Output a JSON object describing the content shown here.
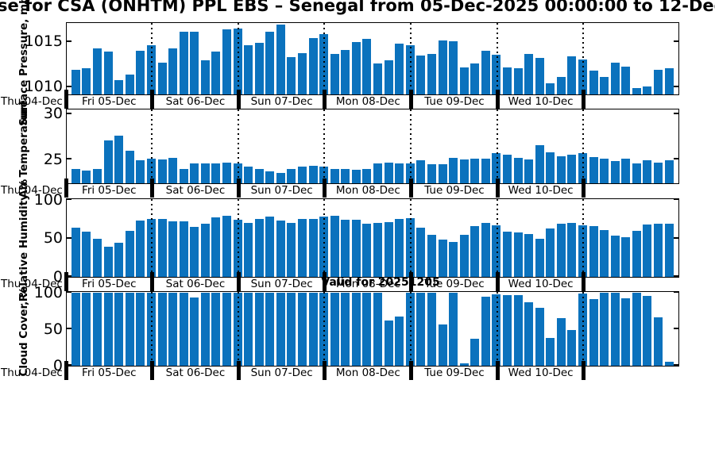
{
  "title": "se for CSA (ONHTM) PPL EBS  – Senegal from 05-Dec-2025 00:00:00 to 12-Dec",
  "valid_label": "Valid for 20251205",
  "colors": {
    "bar": "#0b72bd",
    "frame": "#000000"
  },
  "x_axis": {
    "left_label": "Thu 04-Dec",
    "day_labels": [
      "Fri 05-Dec",
      "Sat 06-Dec",
      "Sun 07-Dec",
      "Mon 08-Dec",
      "Tue 09-Dec",
      "Wed 10-Dec"
    ],
    "start": "05-Dec-2025 03:00",
    "end": "12-Dec-2025 00:00",
    "step_hours": 3
  },
  "chart_data": [
    {
      "type": "bar",
      "id": "surface-pressure",
      "ylabel": "Surface Pressure, mb",
      "yticks": [
        1010,
        1015
      ],
      "ylim": [
        1009.2,
        1017.0
      ],
      "values": [
        1011.9,
        1012.1,
        1014.3,
        1013.9,
        1010.8,
        1011.4,
        1014.0,
        1014.6,
        1012.7,
        1014.3,
        1016.1,
        1016.1,
        1013.0,
        1013.9,
        1016.4,
        1016.5,
        1014.6,
        1014.9,
        1016.1,
        1016.9,
        1013.3,
        1013.8,
        1015.4,
        1015.9,
        1013.7,
        1014.1,
        1015.0,
        1015.3,
        1012.6,
        1013.0,
        1014.8,
        1014.6,
        1013.5,
        1013.7,
        1015.2,
        1015.1,
        1012.2,
        1012.6,
        1014.0,
        1013.6,
        1012.2,
        1012.1,
        1013.7,
        1013.2,
        1010.4,
        1011.1,
        1013.4,
        1013.1,
        1011.8,
        1011.1,
        1012.7,
        1012.3,
        1009.9,
        1010.1,
        1011.9,
        1012.1
      ]
    },
    {
      "type": "bar",
      "id": "air-temperature",
      "ylabel": "Air Temperature",
      "yticks": [
        25,
        30
      ],
      "ylim": [
        22.4,
        30.4
      ],
      "values": [
        24.0,
        23.8,
        24.0,
        27.1,
        27.6,
        26.0,
        24.9,
        25.1,
        25.0,
        25.2,
        24.0,
        24.6,
        24.6,
        24.6,
        24.7,
        24.6,
        24.2,
        24.0,
        23.7,
        23.5,
        24.0,
        24.2,
        24.3,
        24.2,
        24.0,
        24.0,
        23.9,
        24.0,
        24.6,
        24.7,
        24.6,
        24.6,
        24.9,
        24.5,
        24.5,
        25.2,
        25.0,
        25.1,
        25.1,
        25.7,
        25.5,
        25.2,
        25.0,
        26.6,
        25.8,
        25.4,
        25.5,
        25.7,
        25.3,
        25.1,
        24.8,
        25.1,
        24.6,
        24.9,
        24.7,
        24.9
      ]
    },
    {
      "type": "bar",
      "id": "relative-humidity",
      "ylabel": "Relative Humidity %",
      "yticks": [
        0,
        50,
        100
      ],
      "ylim": [
        0,
        100
      ],
      "values": [
        64,
        59,
        50,
        39,
        44,
        60,
        73,
        75,
        75,
        72,
        72,
        65,
        69,
        77,
        79,
        74,
        70,
        75,
        78,
        73,
        70,
        75,
        75,
        78,
        79,
        74,
        74,
        69,
        70,
        71,
        75,
        76,
        64,
        55,
        48,
        45,
        55,
        66,
        70,
        67,
        59,
        58,
        56,
        50,
        63,
        69,
        70,
        67,
        66,
        61,
        54,
        52,
        60,
        68,
        69,
        69
      ]
    },
    {
      "type": "bar",
      "id": "cloud-cover",
      "ylabel": "Cloud Cover, %",
      "yticks": [
        0,
        50,
        100
      ],
      "ylim": [
        0,
        100
      ],
      "values": [
        100,
        100,
        100,
        100,
        100,
        100,
        100,
        100,
        100,
        100,
        100,
        94,
        100,
        100,
        100,
        100,
        100,
        100,
        100,
        100,
        100,
        100,
        100,
        100,
        100,
        100,
        100,
        100,
        100,
        62,
        67,
        100,
        100,
        100,
        57,
        100,
        3,
        37,
        95,
        98,
        97,
        97,
        87,
        79,
        38,
        65,
        49,
        99,
        91,
        100,
        100,
        92,
        100,
        96,
        66,
        6
      ]
    }
  ]
}
